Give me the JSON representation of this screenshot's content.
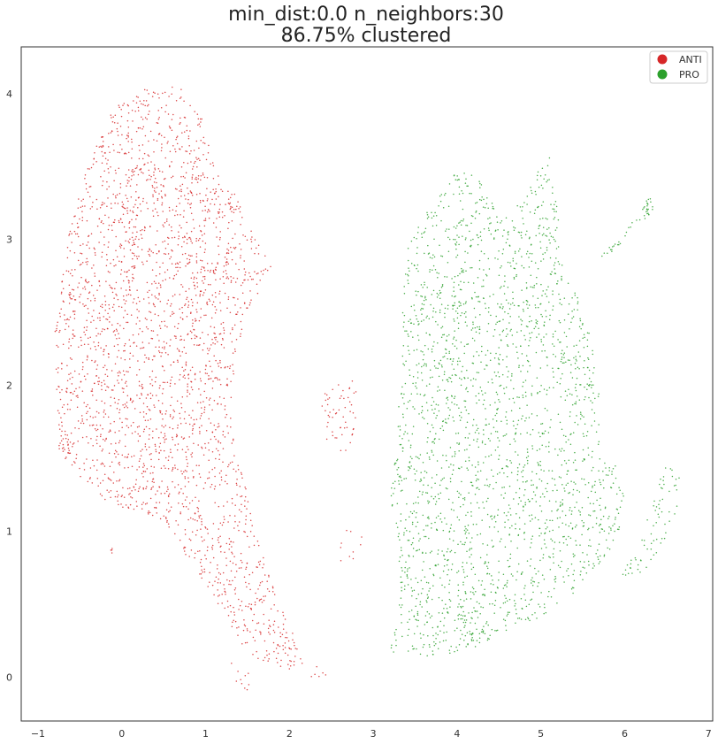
{
  "chart_data": {
    "type": "scatter",
    "title_line1": "min_dist:0.0    n_neighbors:30",
    "title_line2": "86.75% clustered",
    "xlabel": "",
    "ylabel": "",
    "xlim": [
      -1.2,
      7.05
    ],
    "ylim": [
      -0.3,
      4.32
    ],
    "xticks": [
      -1,
      0,
      1,
      2,
      3,
      4,
      5,
      6,
      7
    ],
    "yticks": [
      0,
      1,
      2,
      3,
      4
    ],
    "grid": false,
    "legend_position": "top-right",
    "series": [
      {
        "name": "ANTI",
        "color": "#d62728",
        "clusters": [
          {
            "outline": [
              [
                -0.75,
                1.5
              ],
              [
                -0.8,
                2.4
              ],
              [
                -0.65,
                3.0
              ],
              [
                -0.45,
                3.45
              ],
              [
                -0.1,
                3.9
              ],
              [
                0.3,
                4.04
              ],
              [
                0.75,
                4.05
              ],
              [
                0.95,
                3.85
              ],
              [
                1.1,
                3.5
              ],
              [
                1.35,
                3.35
              ],
              [
                1.55,
                3.05
              ],
              [
                1.8,
                2.8
              ],
              [
                1.5,
                2.5
              ],
              [
                1.35,
                2.2
              ],
              [
                1.3,
                1.7
              ],
              [
                1.55,
                1.2
              ],
              [
                1.65,
                0.9
              ],
              [
                1.85,
                0.55
              ],
              [
                2.0,
                0.35
              ],
              [
                2.25,
                0.05
              ],
              [
                1.95,
                0.05
              ],
              [
                1.5,
                0.15
              ],
              [
                1.2,
                0.45
              ],
              [
                0.85,
                0.75
              ],
              [
                0.55,
                1.0
              ],
              [
                0.2,
                1.15
              ],
              [
                -0.1,
                1.15
              ],
              [
                -0.45,
                1.35
              ]
            ],
            "count": 2600
          },
          {
            "outline": [
              [
                1.3,
                0.1
              ],
              [
                1.55,
                0.1
              ],
              [
                1.55,
                -0.1
              ],
              [
                1.35,
                -0.1
              ]
            ],
            "count": 10
          },
          {
            "outline": [
              [
                2.25,
                0.0
              ],
              [
                2.45,
                0.0
              ],
              [
                2.45,
                0.1
              ],
              [
                2.25,
                0.1
              ]
            ],
            "count": 6
          },
          {
            "outline": [
              [
                2.3,
                1.95
              ],
              [
                2.45,
                1.55
              ],
              [
                2.7,
                1.5
              ],
              [
                2.8,
                1.75
              ],
              [
                2.8,
                2.05
              ],
              [
                2.55,
                2.0
              ]
            ],
            "count": 55
          },
          {
            "outline": [
              [
                2.6,
                1.0
              ],
              [
                2.9,
                1.05
              ],
              [
                2.9,
                0.8
              ],
              [
                2.6,
                0.75
              ]
            ],
            "count": 10
          },
          {
            "outline": [
              [
                -0.15,
                0.85
              ],
              [
                -0.1,
                0.85
              ],
              [
                -0.1,
                0.9
              ],
              [
                -0.15,
                0.9
              ]
            ],
            "count": 4
          }
        ]
      },
      {
        "name": "PRO",
        "color": "#2ca02c",
        "clusters": [
          {
            "outline": [
              [
                3.2,
                1.25
              ],
              [
                3.3,
                1.9
              ],
              [
                3.35,
                2.5
              ],
              [
                3.4,
                2.95
              ],
              [
                3.75,
                3.3
              ],
              [
                4.05,
                3.5
              ],
              [
                4.3,
                3.4
              ],
              [
                4.5,
                3.15
              ],
              [
                4.75,
                3.25
              ],
              [
                4.9,
                3.4
              ],
              [
                5.1,
                3.6
              ],
              [
                5.2,
                3.2
              ],
              [
                5.25,
                2.85
              ],
              [
                5.55,
                2.5
              ],
              [
                5.7,
                2.0
              ],
              [
                5.7,
                1.6
              ],
              [
                5.85,
                1.55
              ],
              [
                6.0,
                1.25
              ],
              [
                5.9,
                0.9
              ],
              [
                5.65,
                0.75
              ],
              [
                5.35,
                0.55
              ],
              [
                5.0,
                0.4
              ],
              [
                4.55,
                0.3
              ],
              [
                4.2,
                0.2
              ],
              [
                3.8,
                0.15
              ],
              [
                3.4,
                0.12
              ],
              [
                3.2,
                0.15
              ],
              [
                3.3,
                0.55
              ],
              [
                3.3,
                0.95
              ]
            ],
            "count": 2400
          },
          {
            "outline": [
              [
                5.7,
                2.9
              ],
              [
                5.95,
                3.0
              ],
              [
                6.3,
                3.3
              ],
              [
                6.35,
                3.2
              ],
              [
                6.0,
                3.0
              ],
              [
                5.75,
                2.85
              ]
            ],
            "count": 45
          },
          {
            "outline": [
              [
                5.95,
                0.75
              ],
              [
                6.2,
                0.95
              ],
              [
                6.45,
                1.45
              ],
              [
                6.65,
                1.45
              ],
              [
                6.65,
                1.2
              ],
              [
                6.5,
                0.95
              ],
              [
                6.2,
                0.7
              ],
              [
                5.95,
                0.7
              ]
            ],
            "count": 70
          }
        ]
      }
    ]
  }
}
